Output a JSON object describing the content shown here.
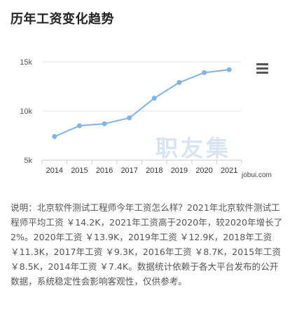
{
  "page": {
    "title": "历年工资变化趋势"
  },
  "chart_data": {
    "type": "line",
    "x": [
      "2014",
      "2015",
      "2016",
      "2017",
      "2018",
      "2019",
      "2020",
      "2021"
    ],
    "series": [
      {
        "values": [
          7.4,
          8.5,
          8.7,
          9.3,
          11.3,
          12.9,
          13.9,
          14.2
        ],
        "color": "#7cb5ec"
      }
    ],
    "y_ticks": [
      "15k",
      "10k",
      "5k"
    ],
    "ylim": [
      5,
      15
    ],
    "grid": true,
    "title": "",
    "xlabel": "",
    "ylabel": ""
  },
  "chart_ui": {
    "menu_icon": "hamburger-menu-icon",
    "watermark_text": "职友集",
    "watermark_url": "jobui.com"
  },
  "description": "说明：北京软件测试工程师今年工资怎么样？2021年北京软件测试工程师平均工资 ￥14.2K，2021年工资高于2020年，较2020年增长了2%。2020年工资 ￥13.9K，2019年工资 ￥12.9K，2018年工资 ￥11.3K，2017年工资 ￥9.3K，2016年工资 ￥8.7K，2015年工资 ￥8.5K，2014年工资 ￥7.4K。数据统计依赖于各大平台发布的公开数据，系统稳定性会影响客观性，仅供参考。"
}
